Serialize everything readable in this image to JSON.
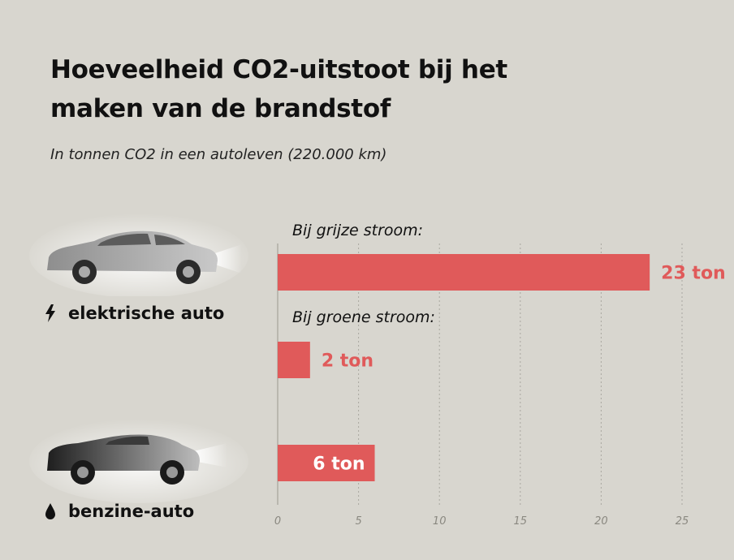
{
  "title": "Hoeveelheid CO2-uitstoot bij het maken van de brandstof",
  "subtitle": "In tonnen CO2 in een autoleven (220.000 km)",
  "cars": {
    "electric": {
      "label": "elektrische auto",
      "icon": "lightning-bolt-icon"
    },
    "petrol": {
      "label": "benzine-auto",
      "icon": "fuel-drop-icon"
    }
  },
  "colors": {
    "bar": "#e05a5a",
    "background": "#d8d6cf",
    "grid": "#a9a7a0"
  },
  "chart_data": {
    "type": "bar",
    "orientation": "horizontal",
    "unit": "ton",
    "xlim": [
      0,
      25
    ],
    "xticks": [
      0,
      5,
      10,
      15,
      20,
      25
    ],
    "grid": "vertical dashed",
    "bars": [
      {
        "group_label": "Bij grijze stroom:",
        "category": "elektrische auto",
        "value": 23,
        "value_label": "23 ton",
        "label_inside": false
      },
      {
        "group_label": "Bij groene stroom:",
        "category": "elektrische auto",
        "value": 2,
        "value_label": "2 ton",
        "label_inside": false
      },
      {
        "group_label": "",
        "category": "benzine-auto",
        "value": 6,
        "value_label": "6 ton",
        "label_inside": true
      }
    ]
  }
}
